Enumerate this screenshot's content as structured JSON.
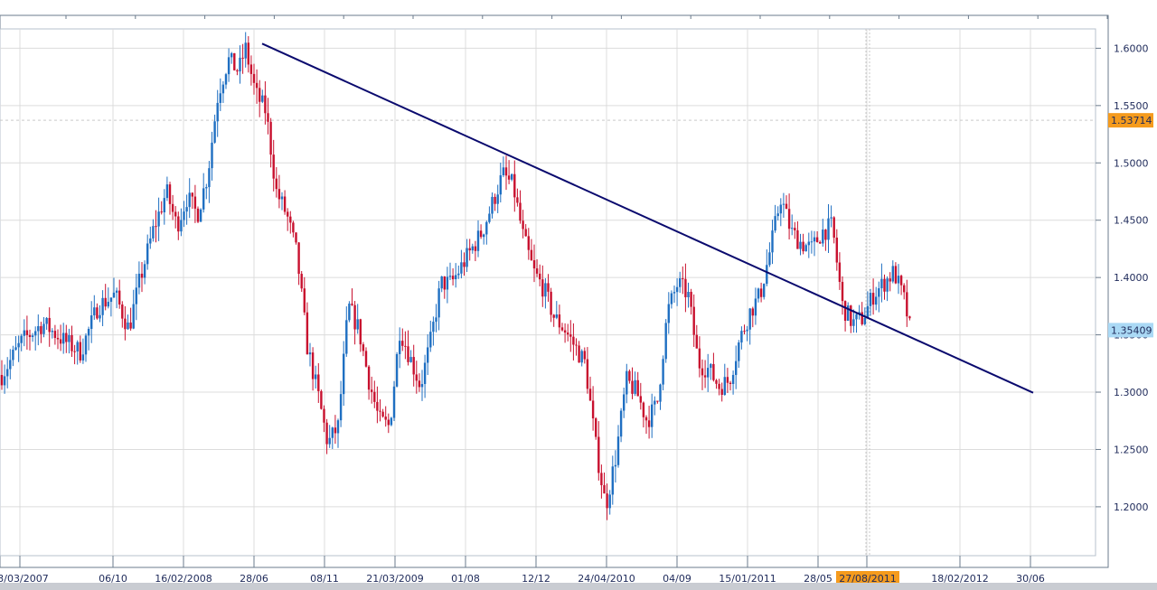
{
  "chart_data": {
    "type": "candlestick",
    "instrument_note": "",
    "x_labels": [
      "03/03/2007",
      "06/10",
      "16/02/2008",
      "28/06",
      "08/11",
      "21/03/2009",
      "01/08",
      "12/12",
      "24/04/2010",
      "04/09",
      "15/01/2011",
      "28/05",
      "27/08/2011",
      "18/02/2012",
      "30/06"
    ],
    "y_ticks": [
      1.2,
      1.25,
      1.3,
      1.35,
      1.4,
      1.45,
      1.5,
      1.55,
      1.6
    ],
    "y_tick_labels": [
      "1.2000",
      "1.2500",
      "1.3000",
      "1.3500",
      "1.4000",
      "1.4500",
      "1.5000",
      "1.5500",
      "1.6000"
    ],
    "ylim": [
      1.155,
      1.615
    ],
    "grid": true,
    "colors": {
      "up": "#1f6fc2",
      "down": "#c8102e",
      "trendline": "#0a0a6e",
      "grid": "#dcdcdc",
      "price_tag": "#aad9f5",
      "hline_tag": "#f59b1d",
      "date_tag": "#f59b1d"
    },
    "current_price": {
      "value": 1.35409,
      "label": "1.35409"
    },
    "horizontal_line": {
      "value": 1.53714,
      "label": "1.53714"
    },
    "highlighted_date": {
      "label": "27/08/2011"
    },
    "trendline": {
      "start": {
        "date": "2008-07-14",
        "price": 1.604
      },
      "end": {
        "date": "2012-07-16",
        "price": 1.2995
      }
    },
    "series_path": [
      [
        "2007-03-05",
        1.315
      ],
      [
        "2007-04-16",
        1.345
      ],
      [
        "2007-05-28",
        1.36
      ],
      [
        "2007-07-09",
        1.345
      ],
      [
        "2007-08-13",
        1.335
      ],
      [
        "2007-09-17",
        1.375
      ],
      [
        "2007-10-22",
        1.385
      ],
      [
        "2007-11-19",
        1.355
      ],
      [
        "2007-12-10",
        1.395
      ],
      [
        "2008-01-07",
        1.44
      ],
      [
        "2008-02-04",
        1.475
      ],
      [
        "2008-02-25",
        1.445
      ],
      [
        "2008-03-17",
        1.47
      ],
      [
        "2008-04-07",
        1.455
      ],
      [
        "2008-04-28",
        1.49
      ],
      [
        "2008-05-19",
        1.56
      ],
      [
        "2008-06-09",
        1.59
      ],
      [
        "2008-06-30",
        1.58
      ],
      [
        "2008-07-14",
        1.6
      ],
      [
        "2008-08-04",
        1.56
      ],
      [
        "2008-08-25",
        1.545
      ],
      [
        "2008-09-15",
        1.475
      ],
      [
        "2008-10-06",
        1.455
      ],
      [
        "2008-10-27",
        1.42
      ],
      [
        "2008-11-17",
        1.34
      ],
      [
        "2008-12-08",
        1.3
      ],
      [
        "2008-12-29",
        1.255
      ],
      [
        "2009-01-19",
        1.27
      ],
      [
        "2009-02-09",
        1.375
      ],
      [
        "2009-03-02",
        1.355
      ],
      [
        "2009-03-23",
        1.31
      ],
      [
        "2009-04-13",
        1.275
      ],
      [
        "2009-05-04",
        1.27
      ],
      [
        "2009-05-25",
        1.355
      ],
      [
        "2009-06-15",
        1.33
      ],
      [
        "2009-07-06",
        1.305
      ],
      [
        "2009-07-27",
        1.345
      ],
      [
        "2009-08-17",
        1.395
      ],
      [
        "2009-09-07",
        1.395
      ],
      [
        "2009-09-28",
        1.41
      ],
      [
        "2009-10-19",
        1.425
      ],
      [
        "2009-11-09",
        1.44
      ],
      [
        "2009-11-30",
        1.465
      ],
      [
        "2009-12-21",
        1.49
      ],
      [
        "2010-01-11",
        1.48
      ],
      [
        "2010-02-01",
        1.435
      ],
      [
        "2010-02-22",
        1.405
      ],
      [
        "2010-03-15",
        1.39
      ],
      [
        "2010-04-05",
        1.365
      ],
      [
        "2010-04-26",
        1.355
      ],
      [
        "2010-05-17",
        1.34
      ],
      [
        "2010-06-07",
        1.325
      ],
      [
        "2010-06-28",
        1.255
      ],
      [
        "2010-07-19",
        1.2
      ],
      [
        "2010-08-09",
        1.245
      ],
      [
        "2010-08-30",
        1.31
      ],
      [
        "2010-09-20",
        1.3
      ],
      [
        "2010-10-11",
        1.275
      ],
      [
        "2010-11-01",
        1.29
      ],
      [
        "2010-11-22",
        1.37
      ],
      [
        "2010-12-13",
        1.395
      ],
      [
        "2011-01-03",
        1.385
      ],
      [
        "2011-01-24",
        1.325
      ],
      [
        "2011-02-14",
        1.32
      ],
      [
        "2011-03-07",
        1.305
      ],
      [
        "2011-03-28",
        1.31
      ],
      [
        "2011-04-18",
        1.345
      ],
      [
        "2011-05-09",
        1.37
      ],
      [
        "2011-05-30",
        1.385
      ],
      [
        "2011-06-20",
        1.425
      ],
      [
        "2011-07-11",
        1.47
      ],
      [
        "2011-08-01",
        1.44
      ],
      [
        "2011-08-22",
        1.43
      ],
      [
        "2011-09-12",
        1.425
      ],
      [
        "2011-10-03",
        1.44
      ],
      [
        "2011-10-24",
        1.445
      ],
      [
        "2011-11-14",
        1.375
      ],
      [
        "2011-12-05",
        1.36
      ],
      [
        "2011-12-26",
        1.365
      ],
      [
        "2012-01-16",
        1.385
      ],
      [
        "2012-02-06",
        1.395
      ],
      [
        "2012-02-27",
        1.405
      ],
      [
        "2012-03-19",
        1.38
      ],
      [
        "2012-04-02",
        1.35
      ]
    ]
  }
}
